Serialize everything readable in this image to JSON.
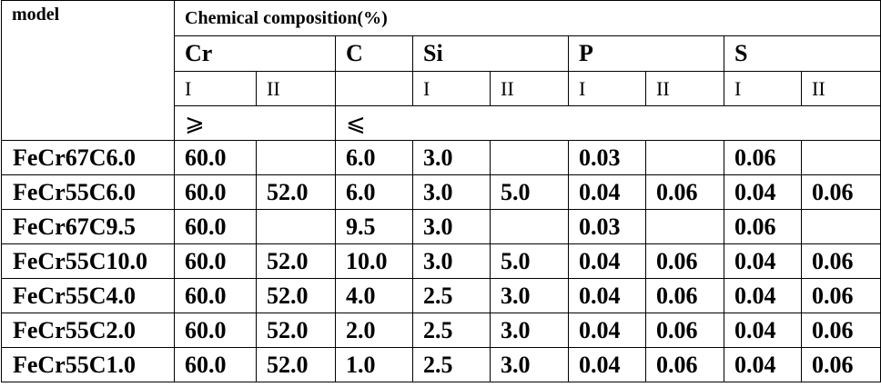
{
  "header": {
    "model_label": "model",
    "group_title": "Chemical composition(%)",
    "elements": [
      "Cr",
      "C",
      "Si",
      "P",
      "S"
    ],
    "grades": {
      "cr_1": "I",
      "cr_2": "II",
      "si_1": "I",
      "si_2": "II",
      "p_1": "I",
      "p_2": "II",
      "s_1": "I",
      "s_2": "II"
    },
    "limits": {
      "cr": "⩾",
      "c": "⩽"
    }
  },
  "rows": [
    {
      "model": "FeCr67C6.0",
      "cr_1": "60.0",
      "cr_2": "",
      "c": "6.0",
      "si_1": "3.0",
      "si_2": "",
      "p_1": "0.03",
      "p_2": "",
      "s_1": "0.06",
      "s_2": ""
    },
    {
      "model": "FeCr55C6.0",
      "cr_1": "60.0",
      "cr_2": "52.0",
      "c": "6.0",
      "si_1": "3.0",
      "si_2": "5.0",
      "p_1": "0.04",
      "p_2": "0.06",
      "s_1": "0.04",
      "s_2": "0.06"
    },
    {
      "model": "FeCr67C9.5",
      "cr_1": "60.0",
      "cr_2": "",
      "c": "9.5",
      "si_1": "3.0",
      "si_2": "",
      "p_1": "0.03",
      "p_2": "",
      "s_1": "0.06",
      "s_2": ""
    },
    {
      "model": "FeCr55C10.0",
      "cr_1": "60.0",
      "cr_2": "52.0",
      "c": "10.0",
      "si_1": "3.0",
      "si_2": "5.0",
      "p_1": "0.04",
      "p_2": "0.06",
      "s_1": "0.04",
      "s_2": "0.06"
    },
    {
      "model": "FeCr55C4.0",
      "cr_1": "60.0",
      "cr_2": "52.0",
      "c": "4.0",
      "si_1": "2.5",
      "si_2": "3.0",
      "p_1": "0.04",
      "p_2": "0.06",
      "s_1": "0.04",
      "s_2": "0.06"
    },
    {
      "model": "FeCr55C2.0",
      "cr_1": "60.0",
      "cr_2": "52.0",
      "c": "2.0",
      "si_1": "2.5",
      "si_2": "3.0",
      "p_1": "0.04",
      "p_2": "0.06",
      "s_1": "0.04",
      "s_2": "0.06"
    },
    {
      "model": "FeCr55C1.0",
      "cr_1": "60.0",
      "cr_2": "52.0",
      "c": "1.0",
      "si_1": "2.5",
      "si_2": "3.0",
      "p_1": "0.04",
      "p_2": "0.06",
      "s_1": "0.04",
      "s_2": "0.06"
    }
  ]
}
